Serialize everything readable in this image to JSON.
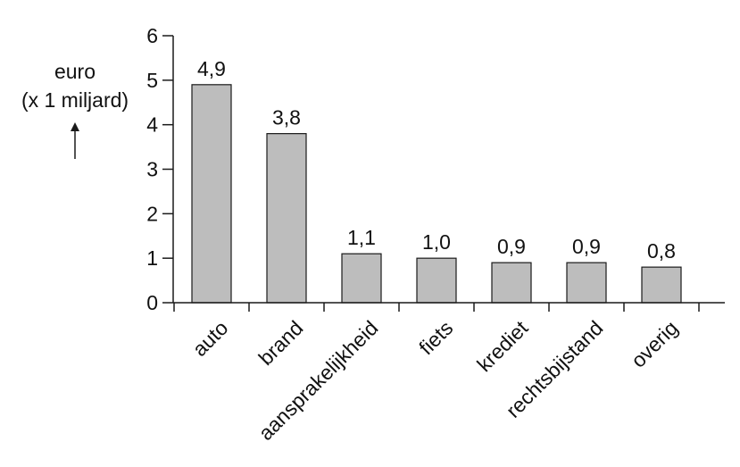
{
  "chart_data": {
    "type": "bar",
    "categories": [
      "auto",
      "brand",
      "aansprakelijkheid",
      "fiets",
      "krediet",
      "rechtsbijstand",
      "overig"
    ],
    "values": [
      4.9,
      3.8,
      1.1,
      1.0,
      0.9,
      0.9,
      0.8
    ],
    "data_labels": [
      "4,9",
      "3,8",
      "1,1",
      "1,0",
      "0,9",
      "0,9",
      "0,8"
    ],
    "ylabel_line1": "euro",
    "ylabel_line2": "(x 1 miljard)",
    "ylabel_arrow": "↑",
    "yticks": [
      0,
      1,
      2,
      3,
      4,
      5,
      6
    ],
    "ylim": [
      0,
      6
    ],
    "grid": false,
    "bar_color": "#bdbdbd"
  }
}
